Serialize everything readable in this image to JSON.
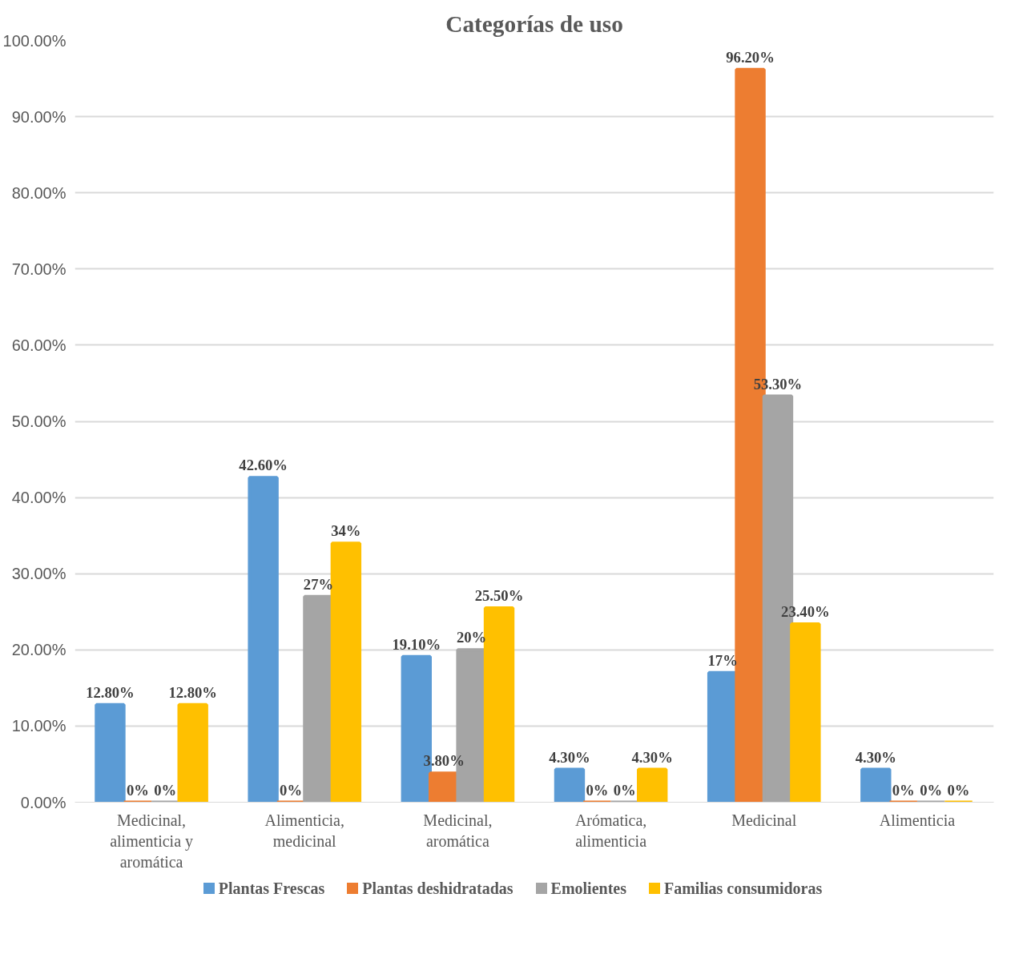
{
  "chart_data": {
    "type": "bar",
    "title": "Categorías de uso",
    "categories": [
      "Medicinal, alimenticia y aromática",
      "Alimenticia, medicinal",
      "Medicinal, aromática",
      "Arómatica, alimenticia",
      "Medicinal",
      "Alimenticia"
    ],
    "series": [
      {
        "name": "Plantas Frescas",
        "color": "#5b9bd5",
        "values": [
          12.8,
          42.6,
          19.1,
          4.3,
          17,
          4.3
        ],
        "value_labels": [
          "12.80%",
          "42.60%",
          "19.10%",
          "4.30%",
          "17%",
          "4.30%"
        ]
      },
      {
        "name": "Plantas deshidratadas",
        "color": "#ed7d31",
        "values": [
          0,
          0,
          3.8,
          0,
          96.2,
          0
        ],
        "value_labels": [
          "0%",
          "0%",
          "3.80%",
          "0%",
          "96.20%",
          "0%"
        ]
      },
      {
        "name": "Emolientes",
        "color": "#a5a5a5",
        "values": [
          0,
          27,
          20,
          0,
          53.3,
          0
        ],
        "value_labels": [
          "0%",
          "27%",
          "20%",
          "0%",
          "53.30%",
          "0%"
        ]
      },
      {
        "name": "Familias consumidoras",
        "color": "#ffc000",
        "values": [
          12.8,
          34,
          25.5,
          4.3,
          23.4,
          0
        ],
        "value_labels": [
          "12.80%",
          "34%",
          "25.50%",
          "4.30%",
          "23.40%",
          "0%"
        ]
      }
    ],
    "ylim": [
      0,
      100
    ],
    "yticks": [
      {
        "value": 0,
        "label": "0.00%"
      },
      {
        "value": 10,
        "label": "10.00%"
      },
      {
        "value": 20,
        "label": "20.00%"
      },
      {
        "value": 30,
        "label": "30.00%"
      },
      {
        "value": 40,
        "label": "40.00%"
      },
      {
        "value": 50,
        "label": "50.00%"
      },
      {
        "value": 60,
        "label": "60.00%"
      },
      {
        "value": 70,
        "label": "70.00%"
      },
      {
        "value": 80,
        "label": "80.00%"
      },
      {
        "value": 90,
        "label": "90.00%"
      },
      {
        "value": 100,
        "label": "100.00%"
      }
    ],
    "grid": "y",
    "legend": "bottom"
  }
}
